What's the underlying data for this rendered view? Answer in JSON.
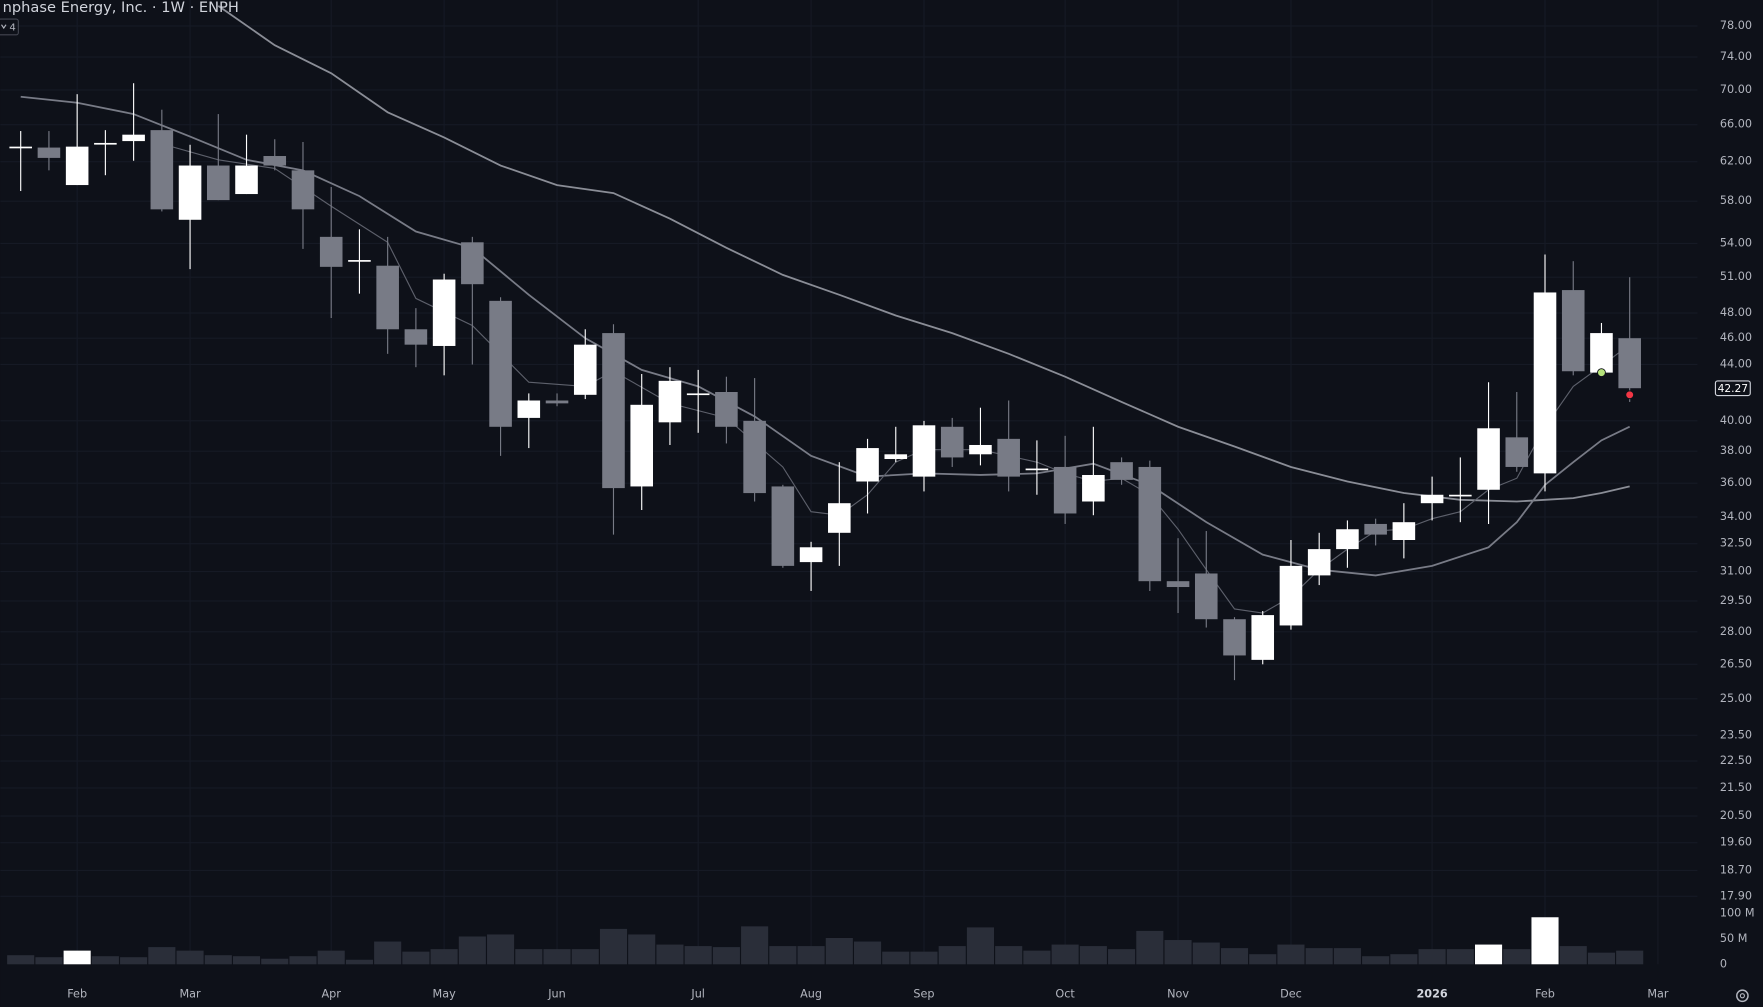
{
  "chart_data": {
    "type": "candlestick",
    "title": "nphase Energy, Inc. · 1W · ENPH",
    "indicator_label": "4",
    "log_scale": true,
    "grid": true,
    "up_color": "#ffffff",
    "down_color": "#787b86",
    "x": [
      0,
      1,
      2,
      3,
      4,
      5,
      6,
      7,
      8,
      9,
      10,
      11,
      12,
      13,
      14,
      15,
      16,
      17,
      18,
      19,
      20,
      21,
      22,
      23,
      24,
      25,
      26,
      27,
      28,
      29,
      30,
      31,
      32,
      33,
      34,
      35,
      36,
      37,
      38,
      39,
      40,
      41,
      42,
      43,
      44,
      45,
      46,
      47,
      48,
      49,
      50,
      51,
      52,
      53,
      54,
      55,
      56,
      57
    ],
    "open": [
      63.6,
      63.5,
      59.6,
      64.0,
      64.2,
      65.4,
      56.2,
      61.6,
      58.7,
      62.6,
      61.1,
      54.6,
      52.5,
      52.0,
      46.7,
      45.4,
      54.1,
      49.0,
      40.2,
      41.4,
      41.8,
      46.4,
      35.8,
      39.9,
      41.9,
      42.0,
      40.0,
      35.8,
      31.5,
      33.1,
      36.1,
      37.5,
      36.4,
      39.6,
      37.8,
      38.8,
      36.9,
      37.0,
      34.9,
      37.3,
      37.0,
      30.5,
      30.9,
      28.6,
      26.7,
      28.3,
      30.8,
      32.2,
      33.6,
      32.7,
      34.8,
      35.3,
      35.6,
      38.9,
      36.6,
      49.9,
      43.4,
      46.0
    ],
    "high": [
      65.3,
      65.3,
      69.5,
      65.4,
      70.8,
      67.7,
      63.8,
      67.2,
      64.9,
      64.4,
      64.1,
      59.4,
      55.3,
      54.6,
      48.4,
      51.3,
      54.6,
      49.3,
      41.9,
      41.9,
      46.7,
      47.1,
      43.3,
      43.8,
      43.6,
      43.1,
      43.0,
      35.9,
      32.6,
      37.3,
      38.8,
      39.6,
      40.0,
      40.2,
      40.9,
      41.4,
      38.7,
      39.0,
      39.6,
      37.6,
      37.4,
      32.8,
      33.2,
      28.7,
      29.0,
      32.7,
      33.1,
      33.8,
      33.9,
      34.8,
      36.4,
      37.6,
      42.7,
      42.0,
      53.0,
      52.4,
      47.2,
      51.0
    ],
    "low": [
      59.0,
      61.1,
      59.6,
      60.6,
      62.1,
      57.0,
      51.7,
      58.1,
      58.7,
      61.1,
      53.5,
      47.6,
      49.6,
      44.8,
      43.8,
      43.2,
      44.0,
      37.7,
      38.2,
      41.0,
      41.5,
      33.0,
      34.4,
      38.4,
      39.2,
      38.5,
      34.9,
      31.2,
      30.0,
      31.3,
      34.2,
      37.3,
      35.5,
      37.0,
      37.1,
      35.5,
      35.3,
      33.6,
      34.1,
      35.9,
      30.0,
      28.9,
      28.2,
      25.8,
      26.5,
      28.1,
      30.3,
      31.2,
      32.4,
      31.7,
      33.8,
      33.7,
      33.6,
      36.7,
      35.5,
      43.2,
      43.2,
      41.3
    ],
    "close": [
      63.6,
      62.4,
      63.6,
      64.0,
      64.9,
      57.2,
      61.6,
      58.1,
      61.6,
      61.6,
      57.2,
      51.9,
      52.5,
      46.7,
      45.5,
      50.8,
      50.4,
      39.6,
      41.4,
      41.2,
      45.5,
      35.7,
      41.1,
      42.8,
      41.9,
      39.6,
      35.4,
      31.3,
      32.3,
      34.8,
      38.2,
      37.8,
      39.7,
      37.6,
      38.4,
      36.4,
      36.9,
      34.2,
      36.5,
      36.2,
      30.5,
      30.2,
      28.6,
      26.9,
      28.8,
      31.3,
      32.2,
      33.3,
      33.0,
      33.7,
      35.3,
      35.3,
      39.5,
      37.0,
      49.7,
      43.5,
      46.4,
      42.27
    ],
    "xlim": [
      -0.72,
      59.4
    ],
    "xticks": [
      {
        "value": 2,
        "label": "Feb"
      },
      {
        "value": 6,
        "label": "Mar"
      },
      {
        "value": 11,
        "label": "Apr"
      },
      {
        "value": 15,
        "label": "May"
      },
      {
        "value": 19,
        "label": "Jun"
      },
      {
        "value": 24,
        "label": "Jul"
      },
      {
        "value": 28,
        "label": "Aug"
      },
      {
        "value": 32,
        "label": "Sep"
      },
      {
        "value": 37,
        "label": "Oct"
      },
      {
        "value": 41,
        "label": "Nov"
      },
      {
        "value": 45,
        "label": "Dec"
      },
      {
        "value": 50,
        "label": "2026"
      },
      {
        "value": 54,
        "label": "Feb"
      },
      {
        "value": 58,
        "label": "Mar"
      }
    ],
    "ylim": [
      17.48,
      81.5
    ],
    "yticks": [
      {
        "value": 78,
        "label": "78.00"
      },
      {
        "value": 74,
        "label": "74.00"
      },
      {
        "value": 70,
        "label": "70.00"
      },
      {
        "value": 66,
        "label": "66.00"
      },
      {
        "value": 62,
        "label": "62.00"
      },
      {
        "value": 58,
        "label": "58.00"
      },
      {
        "value": 54,
        "label": "54.00"
      },
      {
        "value": 51,
        "label": "51.00"
      },
      {
        "value": 48,
        "label": "48.00"
      },
      {
        "value": 46,
        "label": "46.00"
      },
      {
        "value": 44,
        "label": "44.00"
      },
      {
        "value": 40,
        "label": "40.00"
      },
      {
        "value": 38,
        "label": "38.00"
      },
      {
        "value": 36,
        "label": "36.00"
      },
      {
        "value": 34,
        "label": "34.00"
      },
      {
        "value": 32.5,
        "label": "32.50"
      },
      {
        "value": 31,
        "label": "31.00"
      },
      {
        "value": 29.5,
        "label": "29.50"
      },
      {
        "value": 28,
        "label": "28.00"
      },
      {
        "value": 26.5,
        "label": "26.50"
      },
      {
        "value": 25,
        "label": "25.00"
      },
      {
        "value": 23.5,
        "label": "23.50"
      },
      {
        "value": 22.5,
        "label": "22.50"
      },
      {
        "value": 21.5,
        "label": "21.50"
      },
      {
        "value": 20.5,
        "label": "20.50"
      },
      {
        "value": 19.6,
        "label": "19.60"
      },
      {
        "value": 18.7,
        "label": "18.70"
      },
      {
        "value": 17.9,
        "label": "17.90"
      }
    ],
    "moving_averages": [
      {
        "color": "#8a8d96",
        "x": [
          7,
          9,
          11,
          13,
          15,
          17,
          19,
          21,
          23,
          25,
          27,
          29,
          31,
          33,
          35,
          37,
          39,
          41,
          43,
          45,
          47,
          49,
          51,
          53,
          54,
          55,
          56,
          57
        ],
        "values": [
          80.7,
          75.5,
          72.0,
          67.4,
          64.6,
          61.6,
          59.6,
          58.8,
          56.3,
          53.6,
          51.2,
          49.5,
          47.8,
          46.4,
          44.8,
          43.1,
          41.3,
          39.6,
          38.3,
          37.0,
          36.1,
          35.4,
          35.0,
          34.9,
          35.0,
          35.1,
          35.4,
          35.8
        ]
      },
      {
        "color": "#787b86",
        "x": [
          0,
          2,
          4,
          6,
          8,
          10,
          12,
          14,
          16,
          18,
          20,
          22,
          24,
          26,
          28,
          30,
          32,
          34,
          36,
          38,
          40,
          42,
          44,
          46,
          48,
          50,
          52,
          53,
          54,
          55,
          56,
          57
        ],
        "values": [
          69.2,
          68.5,
          67.2,
          64.7,
          62.2,
          61.1,
          58.5,
          55.1,
          53.6,
          49.5,
          46.0,
          43.6,
          42.4,
          40.3,
          37.7,
          36.4,
          36.6,
          36.5,
          36.6,
          37.2,
          35.9,
          33.7,
          31.9,
          31.1,
          30.8,
          31.3,
          32.3,
          33.7,
          35.9,
          37.3,
          38.7,
          39.6
        ]
      },
      {
        "color": "#5d606b",
        "x": [
          5,
          7,
          9,
          11,
          13,
          14,
          16,
          18,
          20,
          21,
          23,
          25,
          27,
          28,
          29,
          30,
          31,
          32,
          34,
          36,
          37,
          38,
          39,
          40,
          41,
          42,
          43,
          44,
          45,
          46,
          47,
          48,
          49,
          50,
          51,
          52,
          53,
          54,
          55,
          56,
          57
        ],
        "values": [
          63.9,
          62.2,
          61.3,
          57.5,
          54.1,
          49.2,
          47.0,
          42.7,
          42.4,
          43.5,
          41.2,
          40.2,
          37.0,
          34.3,
          34.1,
          35.3,
          37.3,
          38.1,
          38.1,
          37.3,
          36.6,
          36.1,
          36.3,
          35.3,
          33.3,
          31.1,
          29.1,
          28.9,
          29.7,
          31.1,
          32.2,
          33.2,
          33.3,
          33.9,
          34.3,
          35.6,
          36.3,
          39.6,
          42.4,
          43.9,
          45.5
        ]
      }
    ],
    "markers": [
      {
        "x": 56,
        "value": 43.4,
        "color": "#b5e27a"
      },
      {
        "x": 57,
        "value": 41.8,
        "color": "#f23645"
      }
    ],
    "volume": {
      "values": [
        18000000,
        14000000,
        27000000,
        16000000,
        14000000,
        34000000,
        27000000,
        18000000,
        16000000,
        11000000,
        16000000,
        27000000,
        9000000,
        45000000,
        25000000,
        30000000,
        55000000,
        59000000,
        30000000,
        30000000,
        30000000,
        70000000,
        59000000,
        39000000,
        36000000,
        34000000,
        75000000,
        36000000,
        36000000,
        52000000,
        45000000,
        25000000,
        25000000,
        36000000,
        73000000,
        36000000,
        27000000,
        39000000,
        36000000,
        30000000,
        66000000,
        48000000,
        43000000,
        32000000,
        20000000,
        39000000,
        32000000,
        32000000,
        16000000,
        20000000,
        30000000,
        30000000,
        39000000,
        30000000,
        93000000,
        36000000,
        23000000,
        27000000
      ],
      "colors": [
        "#2a2e39",
        "#2a2e39",
        "#ffffff",
        "#2a2e39",
        "#2a2e39",
        "#2a2e39",
        "#2a2e39",
        "#2a2e39",
        "#2a2e39",
        "#2a2e39",
        "#2a2e39",
        "#2a2e39",
        "#2a2e39",
        "#2a2e39",
        "#2a2e39",
        "#2a2e39",
        "#2a2e39",
        "#2a2e39",
        "#2a2e39",
        "#2a2e39",
        "#2a2e39",
        "#2a2e39",
        "#2a2e39",
        "#2a2e39",
        "#2a2e39",
        "#2a2e39",
        "#2a2e39",
        "#2a2e39",
        "#2a2e39",
        "#2a2e39",
        "#2a2e39",
        "#2a2e39",
        "#2a2e39",
        "#2a2e39",
        "#2a2e39",
        "#2a2e39",
        "#2a2e39",
        "#2a2e39",
        "#2a2e39",
        "#2a2e39",
        "#2a2e39",
        "#2a2e39",
        "#2a2e39",
        "#2a2e39",
        "#2a2e39",
        "#2a2e39",
        "#2a2e39",
        "#2a2e39",
        "#2a2e39",
        "#2a2e39",
        "#2a2e39",
        "#2a2e39",
        "#ffffff",
        "#2a2e39",
        "#ffffff",
        "#2a2e39",
        "#2a2e39",
        "#2a2e39"
      ],
      "ylim": [
        0,
        100000000
      ],
      "yticks": [
        {
          "value": 0,
          "label": "0"
        },
        {
          "value": 50000000,
          "label": "50 M"
        },
        {
          "value": 100000000,
          "label": "100 M"
        }
      ]
    }
  }
}
